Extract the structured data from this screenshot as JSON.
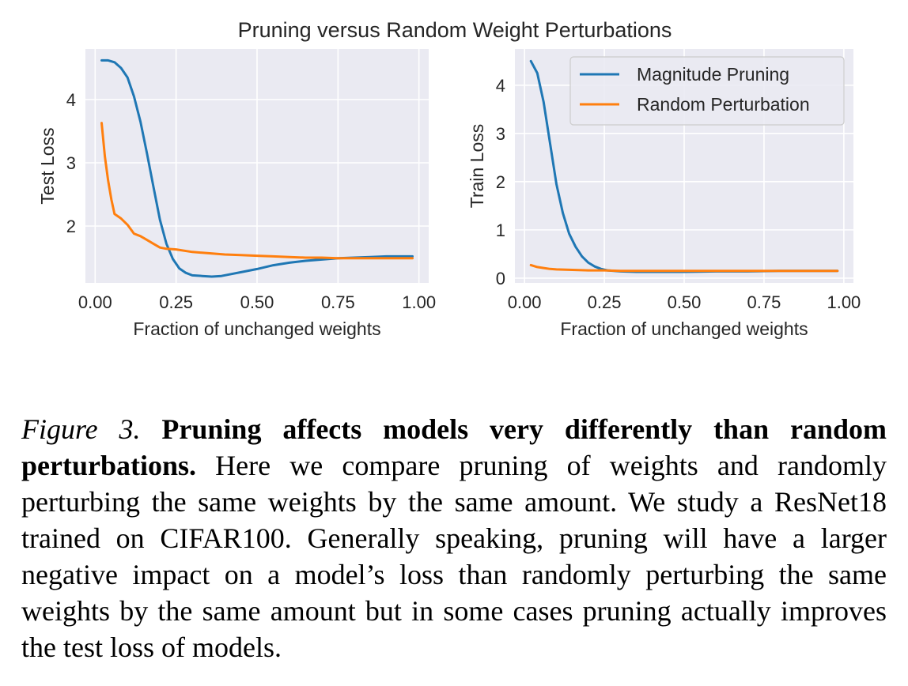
{
  "figure": {
    "suptitle": "Pruning versus Random Weight Perturbations"
  },
  "colors": {
    "panel_bg": "#EAEAF2",
    "grid": "#FFFFFF",
    "magnitude": "#1F77B4",
    "random": "#FF7F0E"
  },
  "chart_data": [
    {
      "type": "line",
      "title": "",
      "xlabel": "Fraction of unchanged weights",
      "ylabel": "Test Loss",
      "xlim": [
        -0.03,
        1.03
      ],
      "ylim": [
        1.1,
        4.8
      ],
      "xticks": [
        0.0,
        0.25,
        0.5,
        0.75,
        1.0
      ],
      "xtick_labels": [
        "0.00",
        "0.25",
        "0.50",
        "0.75",
        "1.00"
      ],
      "yticks": [
        2,
        3,
        4
      ],
      "ytick_labels": [
        "2",
        "3",
        "4"
      ],
      "grid": true,
      "legend": null,
      "series": [
        {
          "name": "Magnitude Pruning",
          "x": [
            0.02,
            0.04,
            0.06,
            0.08,
            0.1,
            0.12,
            0.14,
            0.16,
            0.18,
            0.2,
            0.22,
            0.24,
            0.26,
            0.28,
            0.3,
            0.33,
            0.36,
            0.39,
            0.42,
            0.46,
            0.5,
            0.55,
            0.6,
            0.65,
            0.7,
            0.75,
            0.8,
            0.85,
            0.9,
            0.95,
            0.98
          ],
          "y": [
            4.62,
            4.62,
            4.59,
            4.5,
            4.35,
            4.05,
            3.65,
            3.15,
            2.62,
            2.1,
            1.72,
            1.48,
            1.33,
            1.26,
            1.22,
            1.21,
            1.2,
            1.21,
            1.24,
            1.28,
            1.32,
            1.38,
            1.42,
            1.45,
            1.47,
            1.49,
            1.5,
            1.51,
            1.52,
            1.52,
            1.52
          ]
        },
        {
          "name": "Random Perturbation",
          "x": [
            0.02,
            0.03,
            0.04,
            0.05,
            0.06,
            0.08,
            0.1,
            0.12,
            0.14,
            0.16,
            0.18,
            0.2,
            0.22,
            0.25,
            0.3,
            0.35,
            0.4,
            0.45,
            0.5,
            0.55,
            0.6,
            0.65,
            0.7,
            0.75,
            0.8,
            0.85,
            0.9,
            0.95,
            0.98
          ],
          "y": [
            3.63,
            3.1,
            2.72,
            2.42,
            2.19,
            2.12,
            2.02,
            1.88,
            1.84,
            1.78,
            1.72,
            1.66,
            1.64,
            1.63,
            1.59,
            1.57,
            1.55,
            1.54,
            1.53,
            1.52,
            1.51,
            1.5,
            1.5,
            1.49,
            1.49,
            1.49,
            1.49,
            1.49,
            1.49
          ]
        }
      ]
    },
    {
      "type": "line",
      "title": "",
      "xlabel": "Fraction of unchanged weights",
      "ylabel": "Train Loss",
      "xlim": [
        -0.03,
        1.03
      ],
      "ylim": [
        -0.1,
        4.75
      ],
      "xticks": [
        0.0,
        0.25,
        0.5,
        0.75,
        1.0
      ],
      "xtick_labels": [
        "0.00",
        "0.25",
        "0.50",
        "0.75",
        "1.00"
      ],
      "yticks": [
        0,
        1,
        2,
        3,
        4
      ],
      "ytick_labels": [
        "0",
        "1",
        "2",
        "3",
        "4"
      ],
      "grid": true,
      "legend": "top-right",
      "series": [
        {
          "name": "Magnitude Pruning",
          "x": [
            0.02,
            0.04,
            0.06,
            0.08,
            0.1,
            0.12,
            0.14,
            0.16,
            0.18,
            0.2,
            0.22,
            0.24,
            0.26,
            0.28,
            0.3,
            0.35,
            0.4,
            0.5,
            0.6,
            0.7,
            0.8,
            0.9,
            0.98
          ],
          "y": [
            4.5,
            4.25,
            3.65,
            2.8,
            1.95,
            1.35,
            0.92,
            0.65,
            0.45,
            0.32,
            0.24,
            0.19,
            0.16,
            0.15,
            0.14,
            0.13,
            0.13,
            0.13,
            0.14,
            0.14,
            0.15,
            0.15,
            0.15
          ]
        },
        {
          "name": "Random Perturbation",
          "x": [
            0.02,
            0.04,
            0.06,
            0.08,
            0.1,
            0.15,
            0.2,
            0.25,
            0.3,
            0.4,
            0.5,
            0.6,
            0.7,
            0.8,
            0.9,
            0.98
          ],
          "y": [
            0.27,
            0.23,
            0.21,
            0.19,
            0.18,
            0.17,
            0.16,
            0.16,
            0.15,
            0.15,
            0.15,
            0.15,
            0.15,
            0.15,
            0.15,
            0.15
          ]
        }
      ]
    }
  ],
  "caption": {
    "label": "Figure 3.",
    "bold": "Pruning affects models very differently than random perturbations.",
    "text": "Here we compare pruning of weights and ran­domly perturbing the same weights by the same amount. We study a ResNet18 trained on CIFAR100. Generally speaking, pruning will have a larger negative impact on a model’s loss than randomly perturbing the same weights by the same amount but in some cases pruning actually improves the test loss of models."
  }
}
